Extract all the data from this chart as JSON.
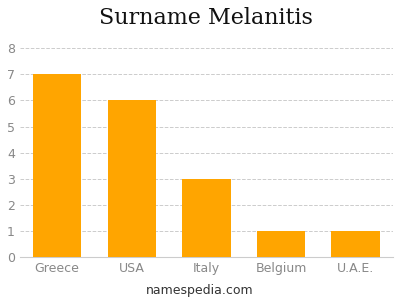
{
  "title": "Surname Melanitis",
  "categories": [
    "Greece",
    "USA",
    "Italy",
    "Belgium",
    "U.A.E."
  ],
  "values": [
    7,
    6,
    3,
    1,
    1
  ],
  "bar_color": "#FFA500",
  "ylim": [
    0,
    8.5
  ],
  "yticks": [
    0,
    1,
    2,
    3,
    4,
    5,
    6,
    7,
    8
  ],
  "ytick_labels": [
    "0",
    "1",
    "2",
    "3",
    "4",
    "5",
    "6",
    "7",
    "8"
  ],
  "grid_color": "#cccccc",
  "title_fontsize": 16,
  "tick_fontsize": 9,
  "xtick_fontsize": 9,
  "footer_text": "namespedia.com",
  "footer_fontsize": 9,
  "background_color": "#ffffff",
  "bar_width": 0.65
}
